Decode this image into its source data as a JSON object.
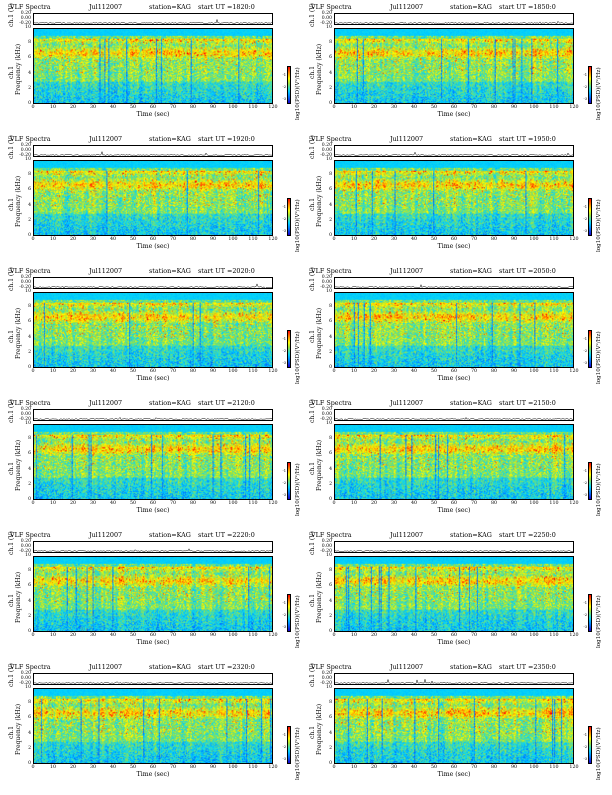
{
  "header": {
    "title": "VLF Spectra",
    "date": "Jul112007",
    "station": "station=KAG",
    "ut_prefix": "start  UT  ="
  },
  "axes": {
    "ts_label": "ch.1 (V)",
    "spec_label_ch": "ch.1",
    "spec_label_freq": "Frequency  (kHz)",
    "xlabel": "Time  (sec)",
    "cbar_label": "log10(PSD)(V²/Hz)"
  },
  "chart_data": {
    "type": "heatmap",
    "ts_ylim": [
      -0.2,
      0.2
    ],
    "ts_yticks": [
      "0.20",
      "0.00",
      "-0.20"
    ],
    "x_ticks": [
      0,
      10,
      20,
      30,
      40,
      50,
      60,
      70,
      80,
      90,
      100,
      110,
      120
    ],
    "xlim": [
      0,
      120
    ],
    "y_ticks": [
      0,
      2,
      4,
      6,
      8,
      10
    ],
    "ylim": [
      0,
      10
    ],
    "colormap": [
      "#1a00d0",
      "#0078ff",
      "#00d2ff",
      "#9fe03c",
      "#ffff00",
      "#ff9a00",
      "#ff0000"
    ],
    "cbar_ticks": [
      "-1",
      "-2",
      "-3"
    ],
    "panels": [
      {
        "start_ut": "1820:0"
      },
      {
        "start_ut": "1850:0"
      },
      {
        "start_ut": "1920:0"
      },
      {
        "start_ut": "1950:0"
      },
      {
        "start_ut": "2020:0"
      },
      {
        "start_ut": "2050:0"
      },
      {
        "start_ut": "2120:0"
      },
      {
        "start_ut": "2150:0"
      },
      {
        "start_ut": "2220:0"
      },
      {
        "start_ut": "2250:0"
      },
      {
        "start_ut": "2320:0"
      },
      {
        "start_ut": "2350:0"
      }
    ]
  }
}
